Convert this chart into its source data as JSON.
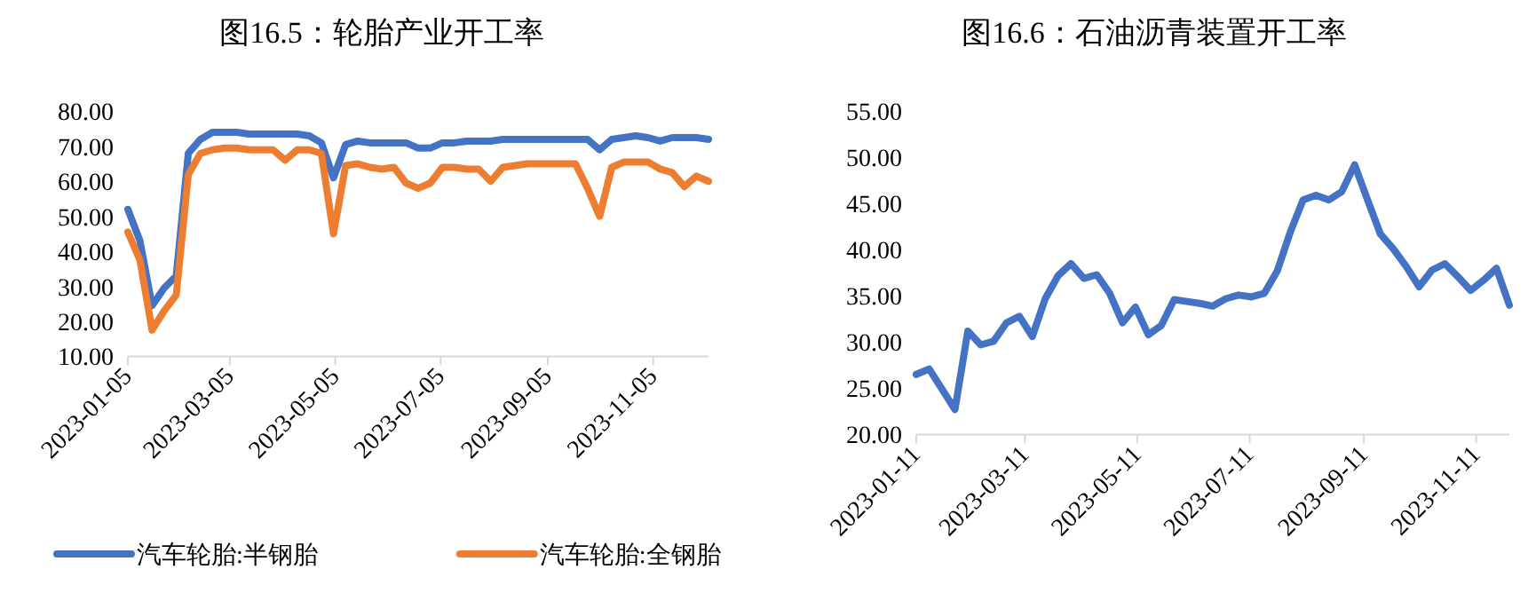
{
  "chart_data": [
    {
      "type": "line",
      "title": "图16.5：轮胎产业开工率",
      "legend": "bottom",
      "x": [
        "2023-01-05",
        "2023-01-12",
        "2023-01-19",
        "2023-01-26",
        "2023-02-02",
        "2023-02-09",
        "2023-02-16",
        "2023-02-23",
        "2023-03-02",
        "2023-03-09",
        "2023-03-16",
        "2023-03-23",
        "2023-03-30",
        "2023-04-06",
        "2023-04-13",
        "2023-04-20",
        "2023-04-27",
        "2023-05-04",
        "2023-05-11",
        "2023-05-18",
        "2023-05-25",
        "2023-06-01",
        "2023-06-08",
        "2023-06-15",
        "2023-06-22",
        "2023-06-29",
        "2023-07-06",
        "2023-07-13",
        "2023-07-20",
        "2023-07-27",
        "2023-08-03",
        "2023-08-10",
        "2023-08-17",
        "2023-08-24",
        "2023-08-31",
        "2023-09-07",
        "2023-09-14",
        "2023-09-21",
        "2023-09-28",
        "2023-10-05",
        "2023-10-12",
        "2023-10-19",
        "2023-10-26",
        "2023-11-02",
        "2023-11-09",
        "2023-11-16",
        "2023-11-23",
        "2023-11-30",
        "2023-12-07"
      ],
      "series": [
        {
          "name": "汽车轮胎:半钢胎",
          "color": "#4472c4",
          "values": [
            52,
            43,
            24.5,
            29.5,
            33,
            68,
            72,
            74,
            74,
            74,
            73.5,
            73.5,
            73.5,
            73.5,
            73.5,
            73,
            71,
            61,
            70.5,
            71.5,
            71,
            71,
            71,
            71,
            69.5,
            69.5,
            71,
            71,
            71.5,
            71.5,
            71.5,
            72,
            72,
            72,
            72,
            72,
            72,
            72,
            72,
            69,
            72,
            72.5,
            73,
            72.5,
            71.5,
            72.5,
            72.5,
            72.5,
            72
          ]
        },
        {
          "name": "汽车轮胎:全钢胎",
          "color": "#ed7d31",
          "values": [
            45.5,
            37.5,
            17.5,
            23,
            27.5,
            62,
            68,
            69,
            69.5,
            69.5,
            69,
            69,
            69,
            66,
            69,
            69,
            68,
            45,
            64.5,
            65,
            64,
            63.5,
            64,
            59.5,
            58,
            59.5,
            64,
            64,
            63.5,
            63.5,
            60,
            64,
            64.5,
            65,
            65,
            65,
            65,
            65,
            58,
            50,
            64,
            65.5,
            65.5,
            65.5,
            63.5,
            62.5,
            58.5,
            61.5,
            60
          ]
        }
      ],
      "xlim": [
        "2023-01-05",
        "2023-12-07"
      ],
      "xticks": [
        {
          "value": "2023-01-05",
          "label": "2023-01-05"
        },
        {
          "value": "2023-03-05",
          "label": "2023-03-05"
        },
        {
          "value": "2023-05-05",
          "label": "2023-05-05"
        },
        {
          "value": "2023-07-05",
          "label": "2023-07-05"
        },
        {
          "value": "2023-09-05",
          "label": "2023-09-05"
        },
        {
          "value": "2023-11-05",
          "label": "2023-11-05"
        }
      ],
      "ylim": [
        10,
        80
      ],
      "yticks": [
        {
          "value": 10,
          "label": "10.00"
        },
        {
          "value": 20,
          "label": "20.00"
        },
        {
          "value": 30,
          "label": "30.00"
        },
        {
          "value": 40,
          "label": "40.00"
        },
        {
          "value": 50,
          "label": "50.00"
        },
        {
          "value": 60,
          "label": "60.00"
        },
        {
          "value": 70,
          "label": "70.00"
        },
        {
          "value": 80,
          "label": "80.00"
        }
      ]
    },
    {
      "type": "line",
      "title": "图16.6：石油沥青装置开工率",
      "x": [
        "2023-01-11",
        "2023-01-18",
        "2023-01-25",
        "2023-02-01",
        "2023-02-08",
        "2023-02-15",
        "2023-02-22",
        "2023-03-01",
        "2023-03-08",
        "2023-03-15",
        "2023-03-22",
        "2023-03-29",
        "2023-04-05",
        "2023-04-12",
        "2023-04-19",
        "2023-04-26",
        "2023-05-03",
        "2023-05-10",
        "2023-05-17",
        "2023-05-24",
        "2023-05-31",
        "2023-06-07",
        "2023-06-14",
        "2023-06-21",
        "2023-06-28",
        "2023-07-05",
        "2023-07-12",
        "2023-07-19",
        "2023-07-26",
        "2023-08-02",
        "2023-08-09",
        "2023-08-16",
        "2023-08-23",
        "2023-08-30",
        "2023-09-06",
        "2023-09-13",
        "2023-09-20",
        "2023-09-27",
        "2023-10-04",
        "2023-10-11",
        "2023-10-18",
        "2023-10-25",
        "2023-11-01",
        "2023-11-08",
        "2023-11-15",
        "2023-11-22",
        "2023-11-29"
      ],
      "series": [
        {
          "color": "#4472c4",
          "values": [
            26.5,
            27.1,
            24.9,
            22.7,
            31.2,
            29.7,
            30.1,
            32.1,
            32.8,
            30.6,
            34.7,
            37.2,
            38.5,
            36.9,
            37.3,
            35.3,
            32.1,
            33.8,
            30.8,
            31.8,
            34.6,
            34.4,
            34.2,
            33.9,
            34.7,
            35.1,
            34.9,
            35.3,
            37.7,
            41.9,
            45.4,
            45.9,
            45.4,
            46.3,
            49.2,
            45.4,
            41.7,
            40.1,
            38.2,
            36,
            37.8,
            38.5,
            37.1,
            35.6,
            36.7,
            38,
            34
          ]
        }
      ],
      "xlim": [
        "2023-01-11",
        "2023-11-29"
      ],
      "xticks": [
        {
          "value": "2023-01-11",
          "label": "2023-01-11"
        },
        {
          "value": "2023-03-11",
          "label": "2023-03-11"
        },
        {
          "value": "2023-05-11",
          "label": "2023-05-11"
        },
        {
          "value": "2023-07-11",
          "label": "2023-07-11"
        },
        {
          "value": "2023-09-11",
          "label": "2023-09-11"
        },
        {
          "value": "2023-11-11",
          "label": "2023-11-11"
        }
      ],
      "ylim": [
        20,
        55
      ],
      "yticks": [
        {
          "value": 20,
          "label": "20.00"
        },
        {
          "value": 25,
          "label": "25.00"
        },
        {
          "value": 30,
          "label": "30.00"
        },
        {
          "value": 35,
          "label": "35.00"
        },
        {
          "value": 40,
          "label": "40.00"
        },
        {
          "value": 45,
          "label": "45.00"
        },
        {
          "value": 50,
          "label": "50.00"
        },
        {
          "value": 55,
          "label": "55.00"
        }
      ]
    }
  ]
}
